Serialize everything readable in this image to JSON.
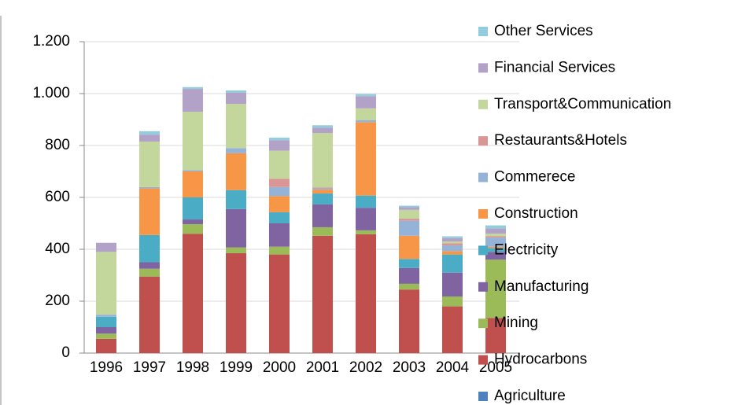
{
  "chart_data": {
    "type": "stacked_bar",
    "categories": [
      "1996",
      "1997",
      "1998",
      "1999",
      "2000",
      "2001",
      "2002",
      "2003",
      "2004",
      "2005"
    ],
    "series": [
      {
        "name": "Agriculture",
        "color": "#4f81bd",
        "values": [
          0,
          0,
          0,
          0,
          0,
          0,
          0,
          0,
          0,
          0
        ]
      },
      {
        "name": "Hydrocarbons",
        "color": "#c0504d",
        "values": [
          55,
          295,
          460,
          385,
          380,
          452,
          458,
          245,
          180,
          135
        ]
      },
      {
        "name": "Mining",
        "color": "#9bbb59",
        "values": [
          20,
          30,
          37,
          22,
          30,
          33,
          15,
          22,
          38,
          225
        ]
      },
      {
        "name": "Manufacturing",
        "color": "#8064a2",
        "values": [
          25,
          25,
          18,
          148,
          90,
          88,
          87,
          61,
          92,
          30
        ]
      },
      {
        "name": "Electricity",
        "color": "#4bacc6",
        "values": [
          40,
          105,
          85,
          73,
          43,
          42,
          47,
          35,
          70,
          15
        ]
      },
      {
        "name": "Construction",
        "color": "#f79646",
        "values": [
          0,
          180,
          100,
          142,
          62,
          15,
          283,
          89,
          13,
          5
        ]
      },
      {
        "name": "Commerece",
        "color": "#95b3d7",
        "values": [
          8,
          5,
          5,
          20,
          35,
          5,
          8,
          58,
          22,
          35
        ]
      },
      {
        "name": "Restaurants&Hotels",
        "color": "#d99694",
        "values": [
          0,
          0,
          0,
          0,
          32,
          3,
          0,
          8,
          8,
          5
        ]
      },
      {
        "name": "Transport&Communication",
        "color": "#c3d69b",
        "values": [
          242,
          175,
          225,
          170,
          108,
          210,
          45,
          34,
          7,
          10
        ]
      },
      {
        "name": "Financial Services",
        "color": "#b2a2c7",
        "values": [
          35,
          27,
          88,
          43,
          40,
          20,
          47,
          10,
          13,
          20
        ]
      },
      {
        "name": "Other Services",
        "color": "#93cddd",
        "values": [
          0,
          13,
          7,
          9,
          10,
          10,
          8,
          6,
          7,
          12
        ]
      }
    ],
    "ylim": [
      0,
      1200
    ],
    "yticks": [
      0,
      200,
      400,
      600,
      800,
      {
        "value": 1000,
        "label": "1.000"
      },
      {
        "value": 1200,
        "label": "1.200"
      }
    ],
    "grid": true,
    "legend": "right"
  }
}
